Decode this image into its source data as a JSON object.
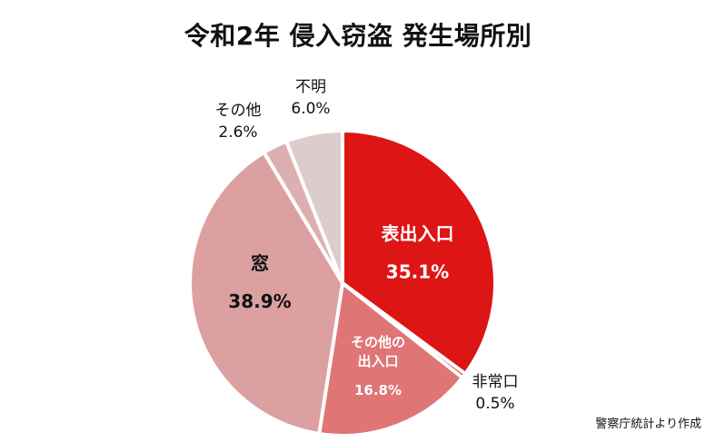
{
  "title": "令和2年 侵入窃盗 発生場所別",
  "source": "警察庁統計より作成",
  "chart_data": {
    "type": "pie",
    "title": "令和2年 侵入窃盗 発生場所別",
    "unit": "%",
    "start": "12 o'clock",
    "direction": "clockwise",
    "slices": [
      {
        "label": "表出入口",
        "value": 35.1,
        "value_label": "35.1%",
        "color": "#dd1515",
        "label_color": "#ffffff",
        "label_position": "inside"
      },
      {
        "label": "非常口",
        "value": 0.5,
        "value_label": "0.5%",
        "color": "#c02a2a",
        "label_color": "#111111",
        "label_position": "outside"
      },
      {
        "label": "その他の出入口",
        "label_lines": [
          "その他の",
          "出入口"
        ],
        "value": 16.8,
        "value_label": "16.8%",
        "color": "#df7575",
        "label_color": "#ffffff",
        "label_position": "inside"
      },
      {
        "label": "窓",
        "value": 38.9,
        "value_label": "38.9%",
        "color": "#dca0a0",
        "label_color": "#111111",
        "label_position": "inside"
      },
      {
        "label": "その他",
        "value": 2.6,
        "value_label": "2.6%",
        "color": "#dcb0b0",
        "label_color": "#111111",
        "label_position": "outside"
      },
      {
        "label": "不明",
        "value": 6.0,
        "value_label": "6.0%",
        "color": "#dccccc",
        "label_color": "#111111",
        "label_position": "outside"
      }
    ]
  }
}
